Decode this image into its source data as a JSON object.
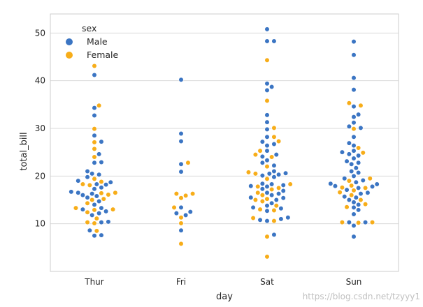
{
  "chart_data": {
    "type": "scatter",
    "subtype": "swarm",
    "title": "",
    "xlabel": "day",
    "ylabel": "total_bill",
    "categories": [
      "Thur",
      "Fri",
      "Sat",
      "Sun"
    ],
    "ylim": [
      0,
      54
    ],
    "yticks": [
      10,
      20,
      30,
      40,
      50
    ],
    "grid": true,
    "legend": {
      "title": "sex",
      "placement": "top-left"
    },
    "series": [
      {
        "name": "Male",
        "color": "#3b75c3",
        "values": {
          "Thur": [
            7.5,
            7.6,
            8.6,
            10.3,
            10.4,
            11.8,
            12.2,
            12.6,
            13.0,
            13.3,
            14.0,
            14.7,
            15.5,
            15.8,
            16.0,
            16.3,
            16.5,
            16.7,
            17.3,
            17.6,
            18.2,
            18.3,
            18.7,
            19.0,
            19.8,
            20.3,
            20.5,
            21.0,
            22.8,
            22.9,
            24.6,
            27.2,
            28.5,
            32.7,
            34.3,
            41.2
          ],
          "Fri": [
            8.6,
            11.8,
            12.2,
            12.5,
            13.4,
            20.9,
            22.5,
            27.3,
            28.9,
            40.2
          ],
          "Sat": [
            7.7,
            10.6,
            10.8,
            11.0,
            11.3,
            12.7,
            13.2,
            13.4,
            13.8,
            14.3,
            15.0,
            15.4,
            15.5,
            16.0,
            16.3,
            16.5,
            16.9,
            17.3,
            17.8,
            17.9,
            18.1,
            18.3,
            18.4,
            19.8,
            20.1,
            20.3,
            20.5,
            20.6,
            21.0,
            22.2,
            22.8,
            23.3,
            24.1,
            24.5,
            25.3,
            26.4,
            26.7,
            27.2,
            28.2,
            29.8,
            31.3,
            32.8,
            38.0,
            38.7,
            39.4,
            48.3,
            48.3,
            50.8
          ],
          "Sun": [
            7.3,
            9.6,
            10.3,
            10.3,
            12.0,
            12.9,
            13.4,
            14.0,
            14.5,
            15.0,
            15.5,
            15.7,
            16.3,
            16.5,
            17.1,
            17.5,
            17.8,
            17.9,
            18.3,
            18.4,
            18.7,
            19.1,
            19.5,
            20.0,
            20.7,
            21.0,
            21.7,
            22.5,
            22.8,
            23.1,
            23.7,
            24.3,
            24.6,
            25.0,
            25.3,
            26.4,
            26.9,
            28.2,
            30.1,
            30.4,
            31.2,
            32.4,
            32.9,
            34.6,
            38.1,
            40.6,
            45.4,
            48.2
          ]
        }
      },
      {
        "name": "Female",
        "color": "#f7ad19",
        "values": {
          "Thur": [
            8.5,
            10.1,
            10.3,
            11.1,
            12.4,
            12.9,
            13.0,
            13.3,
            14.3,
            15.0,
            15.2,
            16.1,
            16.4,
            16.5,
            18.1,
            18.3,
            18.8,
            19.4,
            24.0,
            25.7,
            27.1,
            29.9,
            34.8,
            43.1
          ],
          "Fri": [
            5.8,
            10.1,
            11.3,
            13.4,
            15.4,
            15.9,
            16.3,
            16.3,
            22.8
          ],
          "Sat": [
            3.1,
            7.3,
            10.6,
            11.2,
            12.8,
            13.0,
            13.8,
            14.7,
            15.0,
            15.2,
            16.0,
            16.5,
            17.2,
            17.5,
            17.8,
            18.3,
            19.4,
            20.5,
            20.8,
            22.0,
            24.0,
            24.5,
            25.3,
            27.3,
            28.2,
            30.1,
            35.8,
            44.3
          ],
          "Sun": [
            10.2,
            10.3,
            10.3,
            13.5,
            14.1,
            15.0,
            16.0,
            16.6,
            17.0,
            17.5,
            17.6,
            18.0,
            19.0,
            19.5,
            24.9,
            25.9,
            29.9,
            34.8,
            35.3
          ]
        }
      }
    ]
  },
  "watermark": "https://blog.csdn.net/tzyyy1"
}
